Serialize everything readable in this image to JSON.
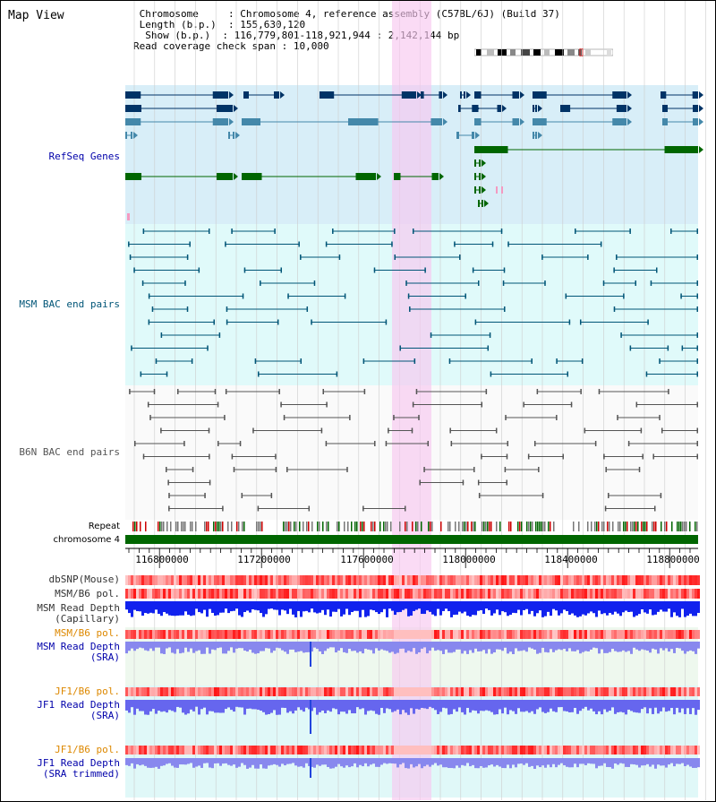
{
  "app": {
    "title": "Map View"
  },
  "info": {
    "chromosome_label": "Chromosome",
    "chromosome_value": "Chromosome 4, reference assembly (C57BL/6J) (Build 37)",
    "length_label": "Length (b.p.)",
    "length_value": "155,630,120",
    "show_label": "Show (b.p.)",
    "show_value": "116,779,801-118,921,944 : 2,142,144 bp",
    "coverage_label": "Read coverage check span",
    "coverage_value": "10,000"
  },
  "tracks": {
    "refseq": "RefSeq Genes",
    "msm_bac": "MSM BAC end pairs",
    "b6n_bac": "B6N BAC end pairs",
    "repeat": "Repeat",
    "chromosome": "chromosome 4",
    "dbsnp": "dbSNP(Mouse)",
    "msm_b6_pol_1": "MSM/B6 pol.",
    "msm_depth_cap_1": "MSM Read Depth",
    "msm_depth_cap_2": "(Capillary)",
    "msm_b6_pol_2": "MSM/B6 pol.",
    "msm_depth_sra_1": "MSM Read Depth",
    "msm_depth_sra_2": "(SRA)",
    "jf1_b6_pol_1": "JF1/B6 pol.",
    "jf1_depth_sra_1": "JF1 Read Depth",
    "jf1_depth_sra_2": "(SRA)",
    "jf1_b6_pol_2": "JF1/B6 pol.",
    "jf1_depth_trim_1": "JF1 Read Depth",
    "jf1_depth_trim_2": "(SRA trimmed)"
  },
  "ruler": {
    "ticks": [
      "116800000",
      "117200000",
      "117600000",
      "118000000",
      "118400000",
      "118800000"
    ]
  },
  "colors": {
    "refseq_bg": "#d8eef8",
    "msm_bg": "#e0fafa",
    "b6n_bg": "#ffffff",
    "highlight": "#f8d8f4",
    "gene_dark": "#003366",
    "gene_mid": "#4488aa",
    "gene_green": "#006600",
    "msm_line": "#005577",
    "b6n_line": "#555555",
    "chrom_bar": "#006600",
    "label_blue": "#0000aa",
    "label_teal": "#005577",
    "label_gray": "#555555",
    "label_orange": "#dd8800",
    "label_black": "#333333"
  }
}
